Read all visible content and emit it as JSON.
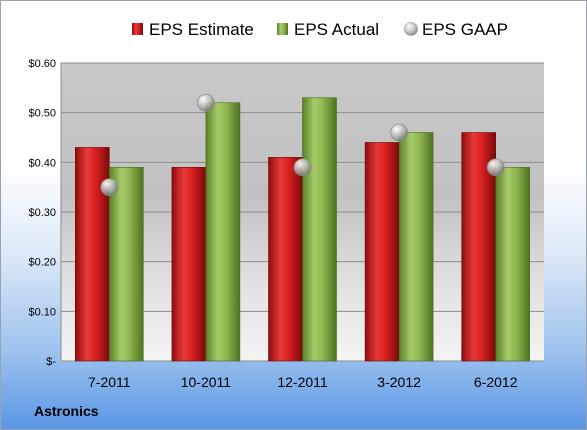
{
  "company": "Astronics",
  "colors": {
    "estimate": "#cc1c1c",
    "actual": "#8cb44c",
    "gaap": "#c8c8c8"
  },
  "chart_data": {
    "type": "bar",
    "title": "",
    "xlabel": "",
    "ylabel": "",
    "ylim": [
      0,
      0.6
    ],
    "yticks": [
      0,
      0.1,
      0.2,
      0.3,
      0.4,
      0.5,
      0.6
    ],
    "ytick_labels": [
      "$-",
      "$0.10",
      "$0.20",
      "$0.30",
      "$0.40",
      "$0.50",
      "$0.60"
    ],
    "grid": true,
    "legend": "top-center",
    "categories": [
      "7-2011",
      "10-2011",
      "12-2011",
      "3-2012",
      "6-2012"
    ],
    "series": [
      {
        "name": "EPS Estimate",
        "type": "bar",
        "values": [
          0.43,
          0.39,
          0.41,
          0.44,
          0.46
        ]
      },
      {
        "name": "EPS Actual",
        "type": "bar",
        "values": [
          0.39,
          0.52,
          0.53,
          0.46,
          0.39
        ]
      },
      {
        "name": "EPS GAAP",
        "type": "scatter",
        "values": [
          0.35,
          0.52,
          0.39,
          0.46,
          0.39
        ]
      }
    ]
  }
}
